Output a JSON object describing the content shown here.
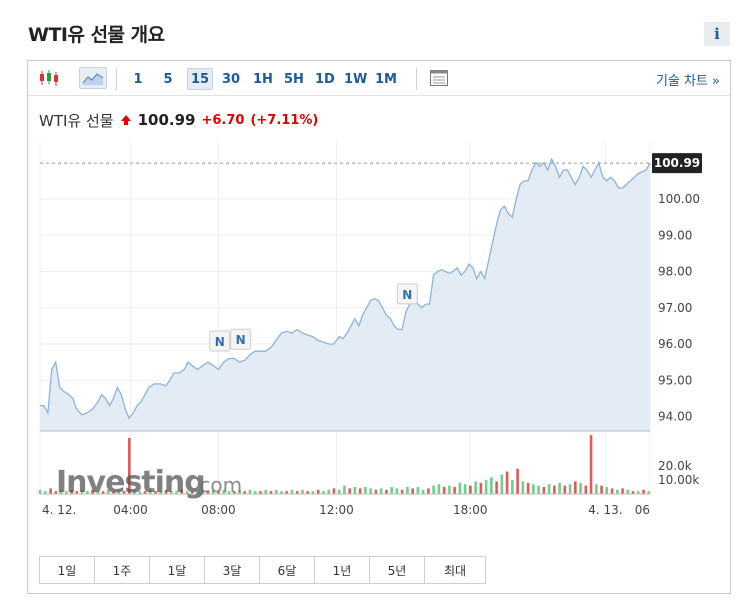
{
  "page": {
    "title": "WTI유 선물 개요",
    "info_label": "i"
  },
  "toolbar": {
    "intervals": [
      "1",
      "5",
      "15",
      "30",
      "1H",
      "5H",
      "1D",
      "1W",
      "1M"
    ],
    "active_interval": "15",
    "technical_link": "기술 차트 »"
  },
  "quote": {
    "name": "WTI유 선물",
    "price": "100.99",
    "change": "+6.70",
    "change_pct": "(+7.11%)",
    "up_color": "#e00000"
  },
  "range_buttons": [
    "1일",
    "1주",
    "1달",
    "3달",
    "6달",
    "1년",
    "5년",
    "최대"
  ],
  "watermark": {
    "brand": "Investing",
    "suffix": ".com"
  },
  "chart_data": {
    "type": "area",
    "y_tick_labels": [
      "94.00",
      "95.00",
      "96.00",
      "97.00",
      "98.00",
      "99.00",
      "100.00"
    ],
    "ylim": [
      93.6,
      101.6
    ],
    "last_price_label": "100.99",
    "last_price": 100.99,
    "x_tick_labels": [
      "4. 12.",
      "04:00",
      "08:00",
      "12:00",
      "18:00",
      "4. 13.",
      "06"
    ],
    "price_series": [
      [
        0,
        94.3
      ],
      [
        3,
        94.3
      ],
      [
        6,
        94.1
      ],
      [
        9,
        95.3
      ],
      [
        12,
        95.5
      ],
      [
        15,
        94.8
      ],
      [
        18,
        94.7
      ],
      [
        22,
        94.6
      ],
      [
        25,
        94.5
      ],
      [
        28,
        94.2
      ],
      [
        32,
        94.05
      ],
      [
        36,
        94.1
      ],
      [
        40,
        94.2
      ],
      [
        44,
        94.4
      ],
      [
        47,
        94.6
      ],
      [
        50,
        94.5
      ],
      [
        53,
        94.3
      ],
      [
        56,
        94.5
      ],
      [
        59,
        94.8
      ],
      [
        62,
        94.6
      ],
      [
        65,
        94.2
      ],
      [
        68,
        93.95
      ],
      [
        71,
        94.1
      ],
      [
        74,
        94.3
      ],
      [
        77,
        94.4
      ],
      [
        80,
        94.6
      ],
      [
        83,
        94.8
      ],
      [
        87,
        94.9
      ],
      [
        92,
        94.9
      ],
      [
        96,
        94.85
      ],
      [
        99,
        95.0
      ],
      [
        102,
        95.2
      ],
      [
        106,
        95.2
      ],
      [
        110,
        95.3
      ],
      [
        113,
        95.5
      ],
      [
        116,
        95.4
      ],
      [
        120,
        95.3
      ],
      [
        124,
        95.4
      ],
      [
        128,
        95.5
      ],
      [
        132,
        95.4
      ],
      [
        136,
        95.3
      ],
      [
        140,
        95.5
      ],
      [
        144,
        95.6
      ],
      [
        148,
        95.6
      ],
      [
        152,
        95.5
      ],
      [
        156,
        95.55
      ],
      [
        160,
        95.7
      ],
      [
        164,
        95.8
      ],
      [
        168,
        95.8
      ],
      [
        172,
        95.8
      ],
      [
        176,
        95.9
      ],
      [
        180,
        96.1
      ],
      [
        184,
        96.3
      ],
      [
        188,
        96.35
      ],
      [
        192,
        96.3
      ],
      [
        196,
        96.4
      ],
      [
        200,
        96.3
      ],
      [
        204,
        96.25
      ],
      [
        208,
        96.2
      ],
      [
        212,
        96.1
      ],
      [
        216,
        96.05
      ],
      [
        220,
        96.0
      ],
      [
        224,
        96.0
      ],
      [
        228,
        96.2
      ],
      [
        231,
        96.15
      ],
      [
        234,
        96.3
      ],
      [
        237,
        96.5
      ],
      [
        240,
        96.7
      ],
      [
        243,
        96.5
      ],
      [
        246,
        96.8
      ],
      [
        249,
        97.0
      ],
      [
        252,
        97.2
      ],
      [
        255,
        97.25
      ],
      [
        258,
        97.2
      ],
      [
        261,
        97.0
      ],
      [
        264,
        96.8
      ],
      [
        267,
        96.7
      ],
      [
        270,
        96.5
      ],
      [
        273,
        96.4
      ],
      [
        276,
        96.4
      ],
      [
        279,
        96.9
      ],
      [
        282,
        97.1
      ],
      [
        285,
        97.3
      ],
      [
        288,
        97.1
      ],
      [
        291,
        97.0
      ],
      [
        294,
        97.1
      ],
      [
        297,
        97.1
      ],
      [
        300,
        97.9
      ],
      [
        303,
        98.0
      ],
      [
        306,
        98.05
      ],
      [
        309,
        98.0
      ],
      [
        312,
        97.95
      ],
      [
        315,
        98.0
      ],
      [
        318,
        98.1
      ],
      [
        321,
        97.9
      ],
      [
        324,
        98.0
      ],
      [
        327,
        98.2
      ],
      [
        330,
        98.1
      ],
      [
        333,
        97.8
      ],
      [
        336,
        98.0
      ],
      [
        339,
        97.8
      ],
      [
        342,
        98.3
      ],
      [
        345,
        98.8
      ],
      [
        348,
        99.3
      ],
      [
        351,
        99.7
      ],
      [
        354,
        99.8
      ],
      [
        357,
        99.6
      ],
      [
        360,
        99.5
      ],
      [
        363,
        100.0
      ],
      [
        366,
        100.4
      ],
      [
        369,
        100.5
      ],
      [
        372,
        100.5
      ],
      [
        375,
        100.8
      ],
      [
        378,
        101.0
      ],
      [
        381,
        100.9
      ],
      [
        384,
        101.0
      ],
      [
        387,
        100.8
      ],
      [
        390,
        101.1
      ],
      [
        393,
        100.9
      ],
      [
        396,
        100.6
      ],
      [
        399,
        100.8
      ],
      [
        402,
        100.8
      ],
      [
        405,
        100.6
      ],
      [
        408,
        100.4
      ],
      [
        411,
        100.6
      ],
      [
        414,
        100.9
      ],
      [
        417,
        100.8
      ],
      [
        420,
        100.6
      ],
      [
        423,
        100.8
      ],
      [
        426,
        101.0
      ],
      [
        429,
        100.6
      ],
      [
        432,
        100.5
      ],
      [
        435,
        100.6
      ],
      [
        438,
        100.5
      ],
      [
        441,
        100.3
      ],
      [
        444,
        100.3
      ],
      [
        447,
        100.4
      ],
      [
        450,
        100.5
      ],
      [
        453,
        100.6
      ],
      [
        456,
        100.7
      ],
      [
        459,
        100.75
      ],
      [
        462,
        100.8
      ],
      [
        465,
        100.99
      ]
    ],
    "news_markers": [
      {
        "label": "N",
        "x": 137,
        "y": 96.0
      },
      {
        "label": "N",
        "x": 153,
        "y": 96.05
      },
      {
        "label": "N",
        "x": 280,
        "y": 97.3
      }
    ],
    "volume_tick_labels": [
      "20.0k",
      "10.00k"
    ],
    "volume_ylim": [
      0,
      45000
    ],
    "volume_up_color": "#6fcf8a",
    "volume_down_color": "#e05a5a",
    "volume_series": [
      [
        0,
        3,
        1
      ],
      [
        4,
        2,
        1
      ],
      [
        8,
        4,
        0
      ],
      [
        12,
        2,
        0
      ],
      [
        16,
        3,
        1
      ],
      [
        20,
        2,
        1
      ],
      [
        24,
        3,
        0
      ],
      [
        28,
        2,
        0
      ],
      [
        32,
        3,
        1
      ],
      [
        36,
        2,
        1
      ],
      [
        40,
        3,
        0
      ],
      [
        44,
        2,
        1
      ],
      [
        48,
        2,
        0
      ],
      [
        52,
        3,
        1
      ],
      [
        56,
        2,
        0
      ],
      [
        60,
        3,
        1
      ],
      [
        64,
        2,
        0
      ],
      [
        68,
        40,
        0
      ],
      [
        72,
        3,
        1
      ],
      [
        76,
        2,
        1
      ],
      [
        80,
        2,
        0
      ],
      [
        84,
        3,
        1
      ],
      [
        88,
        2,
        0
      ],
      [
        92,
        2,
        1
      ],
      [
        96,
        3,
        0
      ],
      [
        100,
        2,
        1
      ],
      [
        104,
        2,
        1
      ],
      [
        108,
        3,
        0
      ],
      [
        112,
        2,
        1
      ],
      [
        116,
        2,
        0
      ],
      [
        120,
        3,
        1
      ],
      [
        124,
        2,
        1
      ],
      [
        128,
        2,
        0
      ],
      [
        132,
        3,
        1
      ],
      [
        136,
        2,
        0
      ],
      [
        140,
        3,
        1
      ],
      [
        144,
        2,
        1
      ],
      [
        148,
        2,
        0
      ],
      [
        152,
        3,
        1
      ],
      [
        156,
        2,
        0
      ],
      [
        160,
        3,
        1
      ],
      [
        164,
        2,
        1
      ],
      [
        168,
        2,
        0
      ],
      [
        172,
        3,
        1
      ],
      [
        176,
        2,
        0
      ],
      [
        180,
        3,
        1
      ],
      [
        184,
        2,
        1
      ],
      [
        188,
        2,
        0
      ],
      [
        192,
        3,
        1
      ],
      [
        196,
        2,
        0
      ],
      [
        200,
        3,
        1
      ],
      [
        204,
        2,
        0
      ],
      [
        208,
        2,
        1
      ],
      [
        212,
        3,
        0
      ],
      [
        216,
        2,
        1
      ],
      [
        220,
        3,
        1
      ],
      [
        224,
        4,
        0
      ],
      [
        228,
        3,
        1
      ],
      [
        232,
        6,
        1
      ],
      [
        236,
        4,
        0
      ],
      [
        240,
        5,
        1
      ],
      [
        244,
        4,
        0
      ],
      [
        248,
        5,
        1
      ],
      [
        252,
        4,
        1
      ],
      [
        256,
        3,
        0
      ],
      [
        260,
        4,
        1
      ],
      [
        264,
        3,
        0
      ],
      [
        268,
        5,
        1
      ],
      [
        272,
        4,
        1
      ],
      [
        276,
        3,
        0
      ],
      [
        280,
        5,
        1
      ],
      [
        284,
        4,
        0
      ],
      [
        288,
        5,
        1
      ],
      [
        292,
        3,
        1
      ],
      [
        296,
        4,
        0
      ],
      [
        300,
        6,
        1
      ],
      [
        304,
        7,
        1
      ],
      [
        308,
        5,
        0
      ],
      [
        312,
        6,
        1
      ],
      [
        316,
        5,
        0
      ],
      [
        320,
        8,
        1
      ],
      [
        324,
        7,
        1
      ],
      [
        328,
        6,
        0
      ],
      [
        332,
        9,
        1
      ],
      [
        336,
        8,
        0
      ],
      [
        340,
        10,
        1
      ],
      [
        344,
        12,
        1
      ],
      [
        348,
        9,
        0
      ],
      [
        352,
        14,
        1
      ],
      [
        356,
        16,
        0
      ],
      [
        360,
        10,
        1
      ],
      [
        364,
        18,
        0
      ],
      [
        368,
        9,
        1
      ],
      [
        372,
        8,
        0
      ],
      [
        376,
        7,
        1
      ],
      [
        380,
        6,
        1
      ],
      [
        384,
        5,
        0
      ],
      [
        388,
        7,
        1
      ],
      [
        392,
        6,
        0
      ],
      [
        396,
        8,
        1
      ],
      [
        400,
        6,
        0
      ],
      [
        404,
        7,
        1
      ],
      [
        408,
        9,
        0
      ],
      [
        412,
        8,
        1
      ],
      [
        416,
        6,
        0
      ],
      [
        420,
        42,
        0
      ],
      [
        424,
        7,
        1
      ],
      [
        428,
        6,
        0
      ],
      [
        432,
        5,
        1
      ],
      [
        436,
        4,
        0
      ],
      [
        440,
        3,
        1
      ],
      [
        444,
        4,
        0
      ],
      [
        448,
        3,
        1
      ],
      [
        452,
        2,
        0
      ],
      [
        456,
        2,
        1
      ],
      [
        460,
        3,
        0
      ],
      [
        464,
        2,
        1
      ]
    ]
  }
}
